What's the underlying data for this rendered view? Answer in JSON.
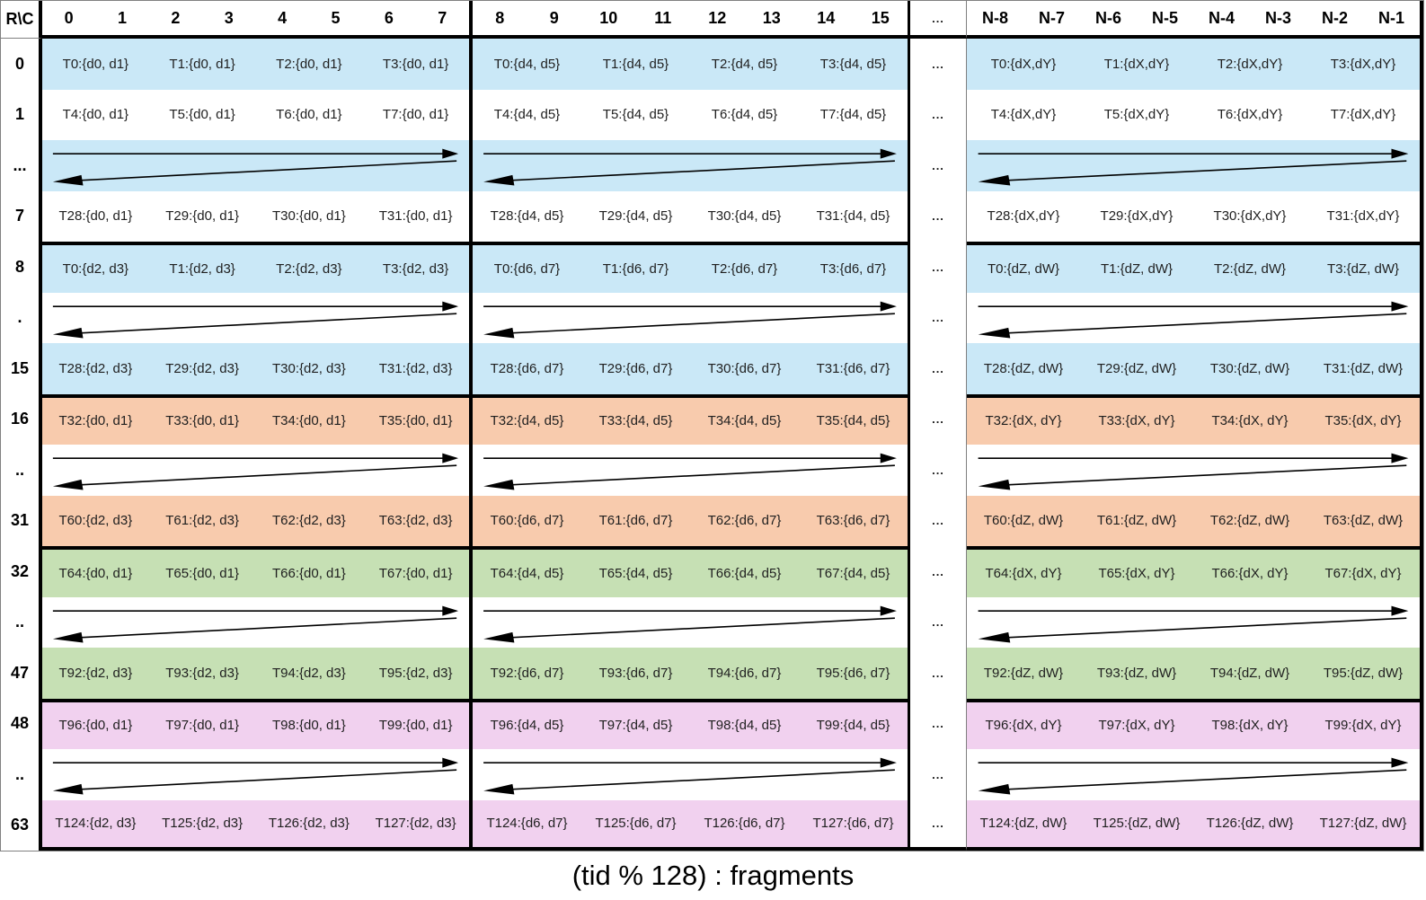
{
  "caption": "(tid % 128) : fragments",
  "corner_label": "R\\C",
  "column_headers": {
    "block1": [
      "0",
      "1",
      "2",
      "3",
      "4",
      "5",
      "6",
      "7"
    ],
    "block2": [
      "8",
      "9",
      "10",
      "11",
      "12",
      "13",
      "14",
      "15"
    ],
    "separator": "...",
    "block3": [
      "N-8",
      "N-7",
      "N-6",
      "N-5",
      "N-4",
      "N-3",
      "N-2",
      "N-1"
    ]
  },
  "colors": {
    "blue": "#cae8f7",
    "orange": "#f8cbad",
    "green": "#c6e0b4",
    "pink": "#f1d1ef",
    "border": "#000000"
  },
  "rows": [
    {
      "label": "0",
      "kind": "cells",
      "shaded": true,
      "bg": "blue",
      "thick_top": false,
      "sep": "...",
      "cells": [
        [
          "T0:{d0, d1}",
          "T1:{d0, d1}",
          "T2:{d0, d1}",
          "T3:{d0, d1}"
        ],
        [
          "T0:{d4, d5}",
          "T1:{d4, d5}",
          "T2:{d4, d5}",
          "T3:{d4, d5}"
        ],
        [
          "T0:{dX,dY}",
          "T1:{dX,dY}",
          "T2:{dX,dY}",
          "T3:{dX,dY}"
        ]
      ]
    },
    {
      "label": "1",
      "kind": "cells",
      "shaded": false,
      "bg": "blue",
      "thick_top": false,
      "sep": "...",
      "cells": [
        [
          "T4:{d0, d1}",
          "T5:{d0, d1}",
          "T6:{d0, d1}",
          "T7:{d0, d1}"
        ],
        [
          "T4:{d4, d5}",
          "T5:{d4, d5}",
          "T6:{d4, d5}",
          "T7:{d4, d5}"
        ],
        [
          "T4:{dX,dY}",
          "T5:{dX,dY}",
          "T6:{dX,dY}",
          "T7:{dX,dY}"
        ]
      ]
    },
    {
      "label": "...",
      "kind": "arrows",
      "shaded": true,
      "bg": "blue",
      "thick_top": false,
      "sep": "..."
    },
    {
      "label": "7",
      "kind": "cells",
      "shaded": false,
      "bg": "blue",
      "thick_top": false,
      "sep": "...",
      "cells": [
        [
          "T28:{d0, d1}",
          "T29:{d0, d1}",
          "T30:{d0, d1}",
          "T31:{d0, d1}"
        ],
        [
          "T28:{d4, d5}",
          "T29:{d4, d5}",
          "T30:{d4, d5}",
          "T31:{d4, d5}"
        ],
        [
          "T28:{dX,dY}",
          "T29:{dX,dY}",
          "T30:{dX,dY}",
          "T31:{dX,dY}"
        ]
      ]
    },
    {
      "label": "8",
      "kind": "cells",
      "shaded": true,
      "bg": "blue",
      "thick_top": true,
      "sep": "...",
      "cells": [
        [
          "T0:{d2, d3}",
          "T1:{d2, d3}",
          "T2:{d2, d3}",
          "T3:{d2, d3}"
        ],
        [
          "T0:{d6, d7}",
          "T1:{d6, d7}",
          "T2:{d6, d7}",
          "T3:{d6, d7}"
        ],
        [
          "T0:{dZ, dW}",
          "T1:{dZ, dW}",
          "T2:{dZ, dW}",
          "T3:{dZ, dW}"
        ]
      ]
    },
    {
      "label": ".",
      "kind": "arrows",
      "shaded": false,
      "bg": "blue",
      "thick_top": false,
      "sep": "..."
    },
    {
      "label": "15",
      "kind": "cells",
      "shaded": true,
      "bg": "blue",
      "thick_top": false,
      "sep": "...",
      "cells": [
        [
          "T28:{d2, d3}",
          "T29:{d2, d3}",
          "T30:{d2, d3}",
          "T31:{d2, d3}"
        ],
        [
          "T28:{d6, d7}",
          "T29:{d6, d7}",
          "T30:{d6, d7}",
          "T31:{d6, d7}"
        ],
        [
          "T28:{dZ, dW}",
          "T29:{dZ, dW}",
          "T30:{dZ, dW}",
          "T31:{dZ, dW}"
        ]
      ]
    },
    {
      "label": "16",
      "kind": "cells",
      "shaded": true,
      "bg": "orange",
      "thick_top": true,
      "sep": "...",
      "cells": [
        [
          "T32:{d0, d1}",
          "T33:{d0, d1}",
          "T34:{d0, d1}",
          "T35:{d0, d1}"
        ],
        [
          "T32:{d4, d5}",
          "T33:{d4, d5}",
          "T34:{d4, d5}",
          "T35:{d4, d5}"
        ],
        [
          "T32:{dX, dY}",
          "T33:{dX, dY}",
          "T34:{dX, dY}",
          "T35:{dX, dY}"
        ]
      ]
    },
    {
      "label": "..",
      "kind": "arrows",
      "shaded": false,
      "bg": "orange",
      "thick_top": false,
      "sep": "..."
    },
    {
      "label": "31",
      "kind": "cells",
      "shaded": true,
      "bg": "orange",
      "thick_top": false,
      "sep": "...",
      "cells": [
        [
          "T60:{d2, d3}",
          "T61:{d2, d3}",
          "T62:{d2, d3}",
          "T63:{d2, d3}"
        ],
        [
          "T60:{d6, d7}",
          "T61:{d6, d7}",
          "T62:{d6, d7}",
          "T63:{d6, d7}"
        ],
        [
          "T60:{dZ, dW}",
          "T61:{dZ, dW}",
          "T62:{dZ, dW}",
          "T63:{dZ, dW}"
        ]
      ]
    },
    {
      "label": "32",
      "kind": "cells",
      "shaded": true,
      "bg": "green",
      "thick_top": true,
      "sep": "...",
      "cells": [
        [
          "T64:{d0, d1}",
          "T65:{d0, d1}",
          "T66:{d0, d1}",
          "T67:{d0, d1}"
        ],
        [
          "T64:{d4, d5}",
          "T65:{d4, d5}",
          "T66:{d4, d5}",
          "T67:{d4, d5}"
        ],
        [
          "T64:{dX, dY}",
          "T65:{dX, dY}",
          "T66:{dX, dY}",
          "T67:{dX, dY}"
        ]
      ]
    },
    {
      "label": "..",
      "kind": "arrows",
      "shaded": false,
      "bg": "green",
      "thick_top": false,
      "sep": "..."
    },
    {
      "label": "47",
      "kind": "cells",
      "shaded": true,
      "bg": "green",
      "thick_top": false,
      "sep": "...",
      "cells": [
        [
          "T92:{d2, d3}",
          "T93:{d2, d3}",
          "T94:{d2, d3}",
          "T95:{d2, d3}"
        ],
        [
          "T92:{d6, d7}",
          "T93:{d6, d7}",
          "T94:{d6, d7}",
          "T95:{d6, d7}"
        ],
        [
          "T92:{dZ, dW}",
          "T93:{dZ, dW}",
          "T94:{dZ, dW}",
          "T95:{dZ, dW}"
        ]
      ]
    },
    {
      "label": "48",
      "kind": "cells",
      "shaded": true,
      "bg": "pink",
      "thick_top": true,
      "sep": "...",
      "cells": [
        [
          "T96:{d0, d1}",
          "T97:{d0, d1}",
          "T98:{d0, d1}",
          "T99:{d0, d1}"
        ],
        [
          "T96:{d4, d5}",
          "T97:{d4, d5}",
          "T98:{d4, d5}",
          "T99:{d4, d5}"
        ],
        [
          "T96:{dX, dY}",
          "T97:{dX, dY}",
          "T98:{dX, dY}",
          "T99:{dX, dY}"
        ]
      ]
    },
    {
      "label": "..",
      "kind": "arrows",
      "shaded": false,
      "bg": "pink",
      "thick_top": false,
      "sep": "..."
    },
    {
      "label": "63",
      "kind": "cells",
      "shaded": true,
      "bg": "pink",
      "thick_top": false,
      "sep": "...",
      "cells": [
        [
          "T124:{d2, d3}",
          "T125:{d2, d3}",
          "T126:{d2, d3}",
          "T127:{d2, d3}"
        ],
        [
          "T124:{d6, d7}",
          "T125:{d6, d7}",
          "T126:{d6, d7}",
          "T127:{d6, d7}"
        ],
        [
          "T124:{dZ, dW}",
          "T125:{dZ, dW}",
          "T126:{dZ, dW}",
          "T127:{dZ, dW}"
        ]
      ]
    }
  ]
}
